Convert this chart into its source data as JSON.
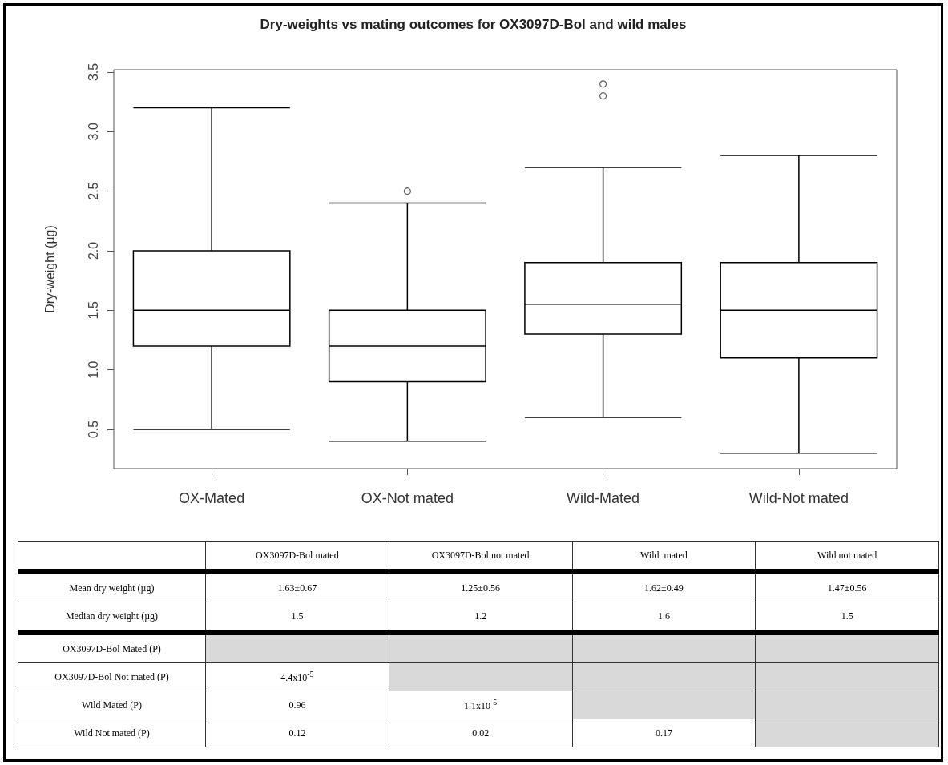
{
  "chart_data": {
    "type": "box",
    "title": "Dry-weights vs mating outcomes for OX3097D-Bol and wild males",
    "ylabel": "Dry-weight (µg)",
    "categories": [
      "OX-Mated",
      "OX-Not mated",
      "Wild-Mated",
      "Wild-Not mated"
    ],
    "boxes": [
      {
        "low": 0.5,
        "q1": 1.2,
        "median": 1.5,
        "q3": 2.0,
        "high": 3.2
      },
      {
        "low": 0.4,
        "q1": 0.9,
        "median": 1.2,
        "q3": 1.5,
        "high": 2.4,
        "outliers": [
          2.5
        ]
      },
      {
        "low": 0.6,
        "q1": 1.3,
        "median": 1.55,
        "q3": 1.9,
        "high": 2.7,
        "outliers": [
          3.3,
          3.4
        ]
      },
      {
        "low": 0.3,
        "q1": 1.1,
        "median": 1.5,
        "q3": 1.9,
        "high": 2.8
      }
    ],
    "ylim": [
      0.17,
      3.52
    ],
    "yticks": [
      0.5,
      {
        "value": 1,
        "label": "1.0"
      },
      1.5,
      {
        "value": 2,
        "label": "2.0"
      },
      2.5,
      {
        "value": 3,
        "label": "3.0"
      },
      3.5
    ],
    "grid": false,
    "annotations": [
      null,
      "OX3097D-Bol mated",
      "OX3097D-Bol not mated",
      "Wild  mated",
      "Wild not mated",
      "Mean dry weight (µg)",
      "1.63±0.67",
      "1.25±0.56",
      "1.62±0.49",
      "1.47±0.56",
      "Median dry weight (µg)",
      "1.5",
      "1.2",
      "1.6",
      "1.5",
      "OX3097D-Bol Mated (P)",
      null,
      null,
      null,
      null,
      "OX3097D-Bol Not mated (P)",
      "4.4x10$^{-5}$",
      null,
      null,
      null,
      "Wild Mated (P)",
      "0.96",
      "1.1x10$^{-5}$",
      null,
      null,
      "Wild Not mated (P)",
      "0.12",
      "0.02",
      "0.17",
      null
    ]
  }
}
